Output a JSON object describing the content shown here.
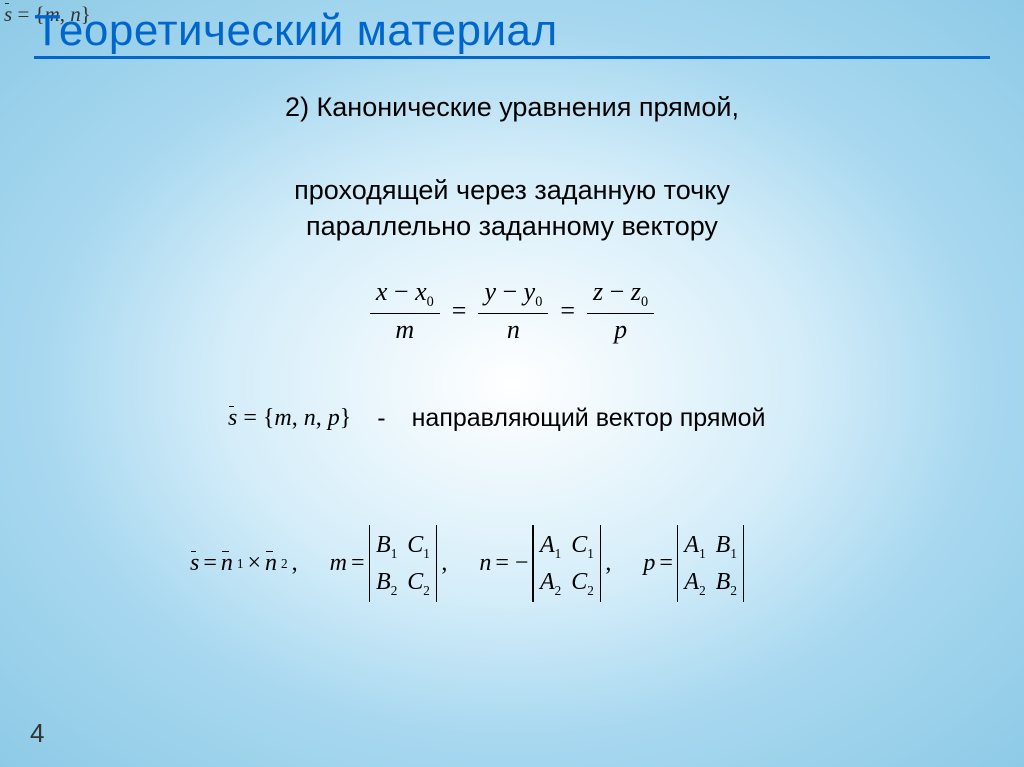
{
  "corner": "s̄ = {m, n}",
  "title": "Теоретический материал",
  "subtitle1": "2) Канонические уравнения прямой,",
  "subtitle2_line1": "проходящей через заданную точку",
  "subtitle2_line2": "параллельно заданному вектору",
  "canonical": {
    "f1_num_a": "x",
    "f1_num_b": "x",
    "f1_sub": "0",
    "f1_den": "m",
    "f2_num_a": "y",
    "f2_num_b": "y",
    "f2_sub": "0",
    "f2_den": "n",
    "f3_num_a": "z",
    "f3_num_b": "z",
    "f3_sub": "0",
    "f3_den": "p",
    "minus": "−",
    "eq": "="
  },
  "vector": {
    "formula_s": "s",
    "formula_eq": " = ",
    "formula_set": "{m, n, p}",
    "dash": "-",
    "label": "направляющий вектор прямой"
  },
  "dets": {
    "cross_s": "s",
    "cross_eq": " = ",
    "cross_n1": "n",
    "cross_s1": "1",
    "cross_times": " × ",
    "cross_n2": "n",
    "cross_s2": "2",
    "cross_comma": ",",
    "m_label": "m",
    "m_eq": " = ",
    "m_r1c1": "B",
    "m_r1c1s": "1",
    "m_r1c2": "C",
    "m_r1c2s": "1",
    "m_r2c1": "B",
    "m_r2c1s": "2",
    "m_r2c2": "C",
    "m_r2c2s": "2",
    "m_comma": ",",
    "n_label": "n",
    "n_eq": " = −",
    "n_r1c1": "A",
    "n_r1c1s": "1",
    "n_r1c2": "C",
    "n_r1c2s": "1",
    "n_r2c1": "A",
    "n_r2c1s": "2",
    "n_r2c2": "C",
    "n_r2c2s": "2",
    "n_comma": ",",
    "p_label": "p",
    "p_eq": " = ",
    "p_r1c1": "A",
    "p_r1c1s": "1",
    "p_r1c2": "B",
    "p_r1c2s": "1",
    "p_r2c1": "A",
    "p_r2c1s": "2",
    "p_r2c2": "B",
    "p_r2c2s": "2"
  },
  "page": "4",
  "colors": {
    "title": "#0066cc",
    "text": "#000000"
  }
}
